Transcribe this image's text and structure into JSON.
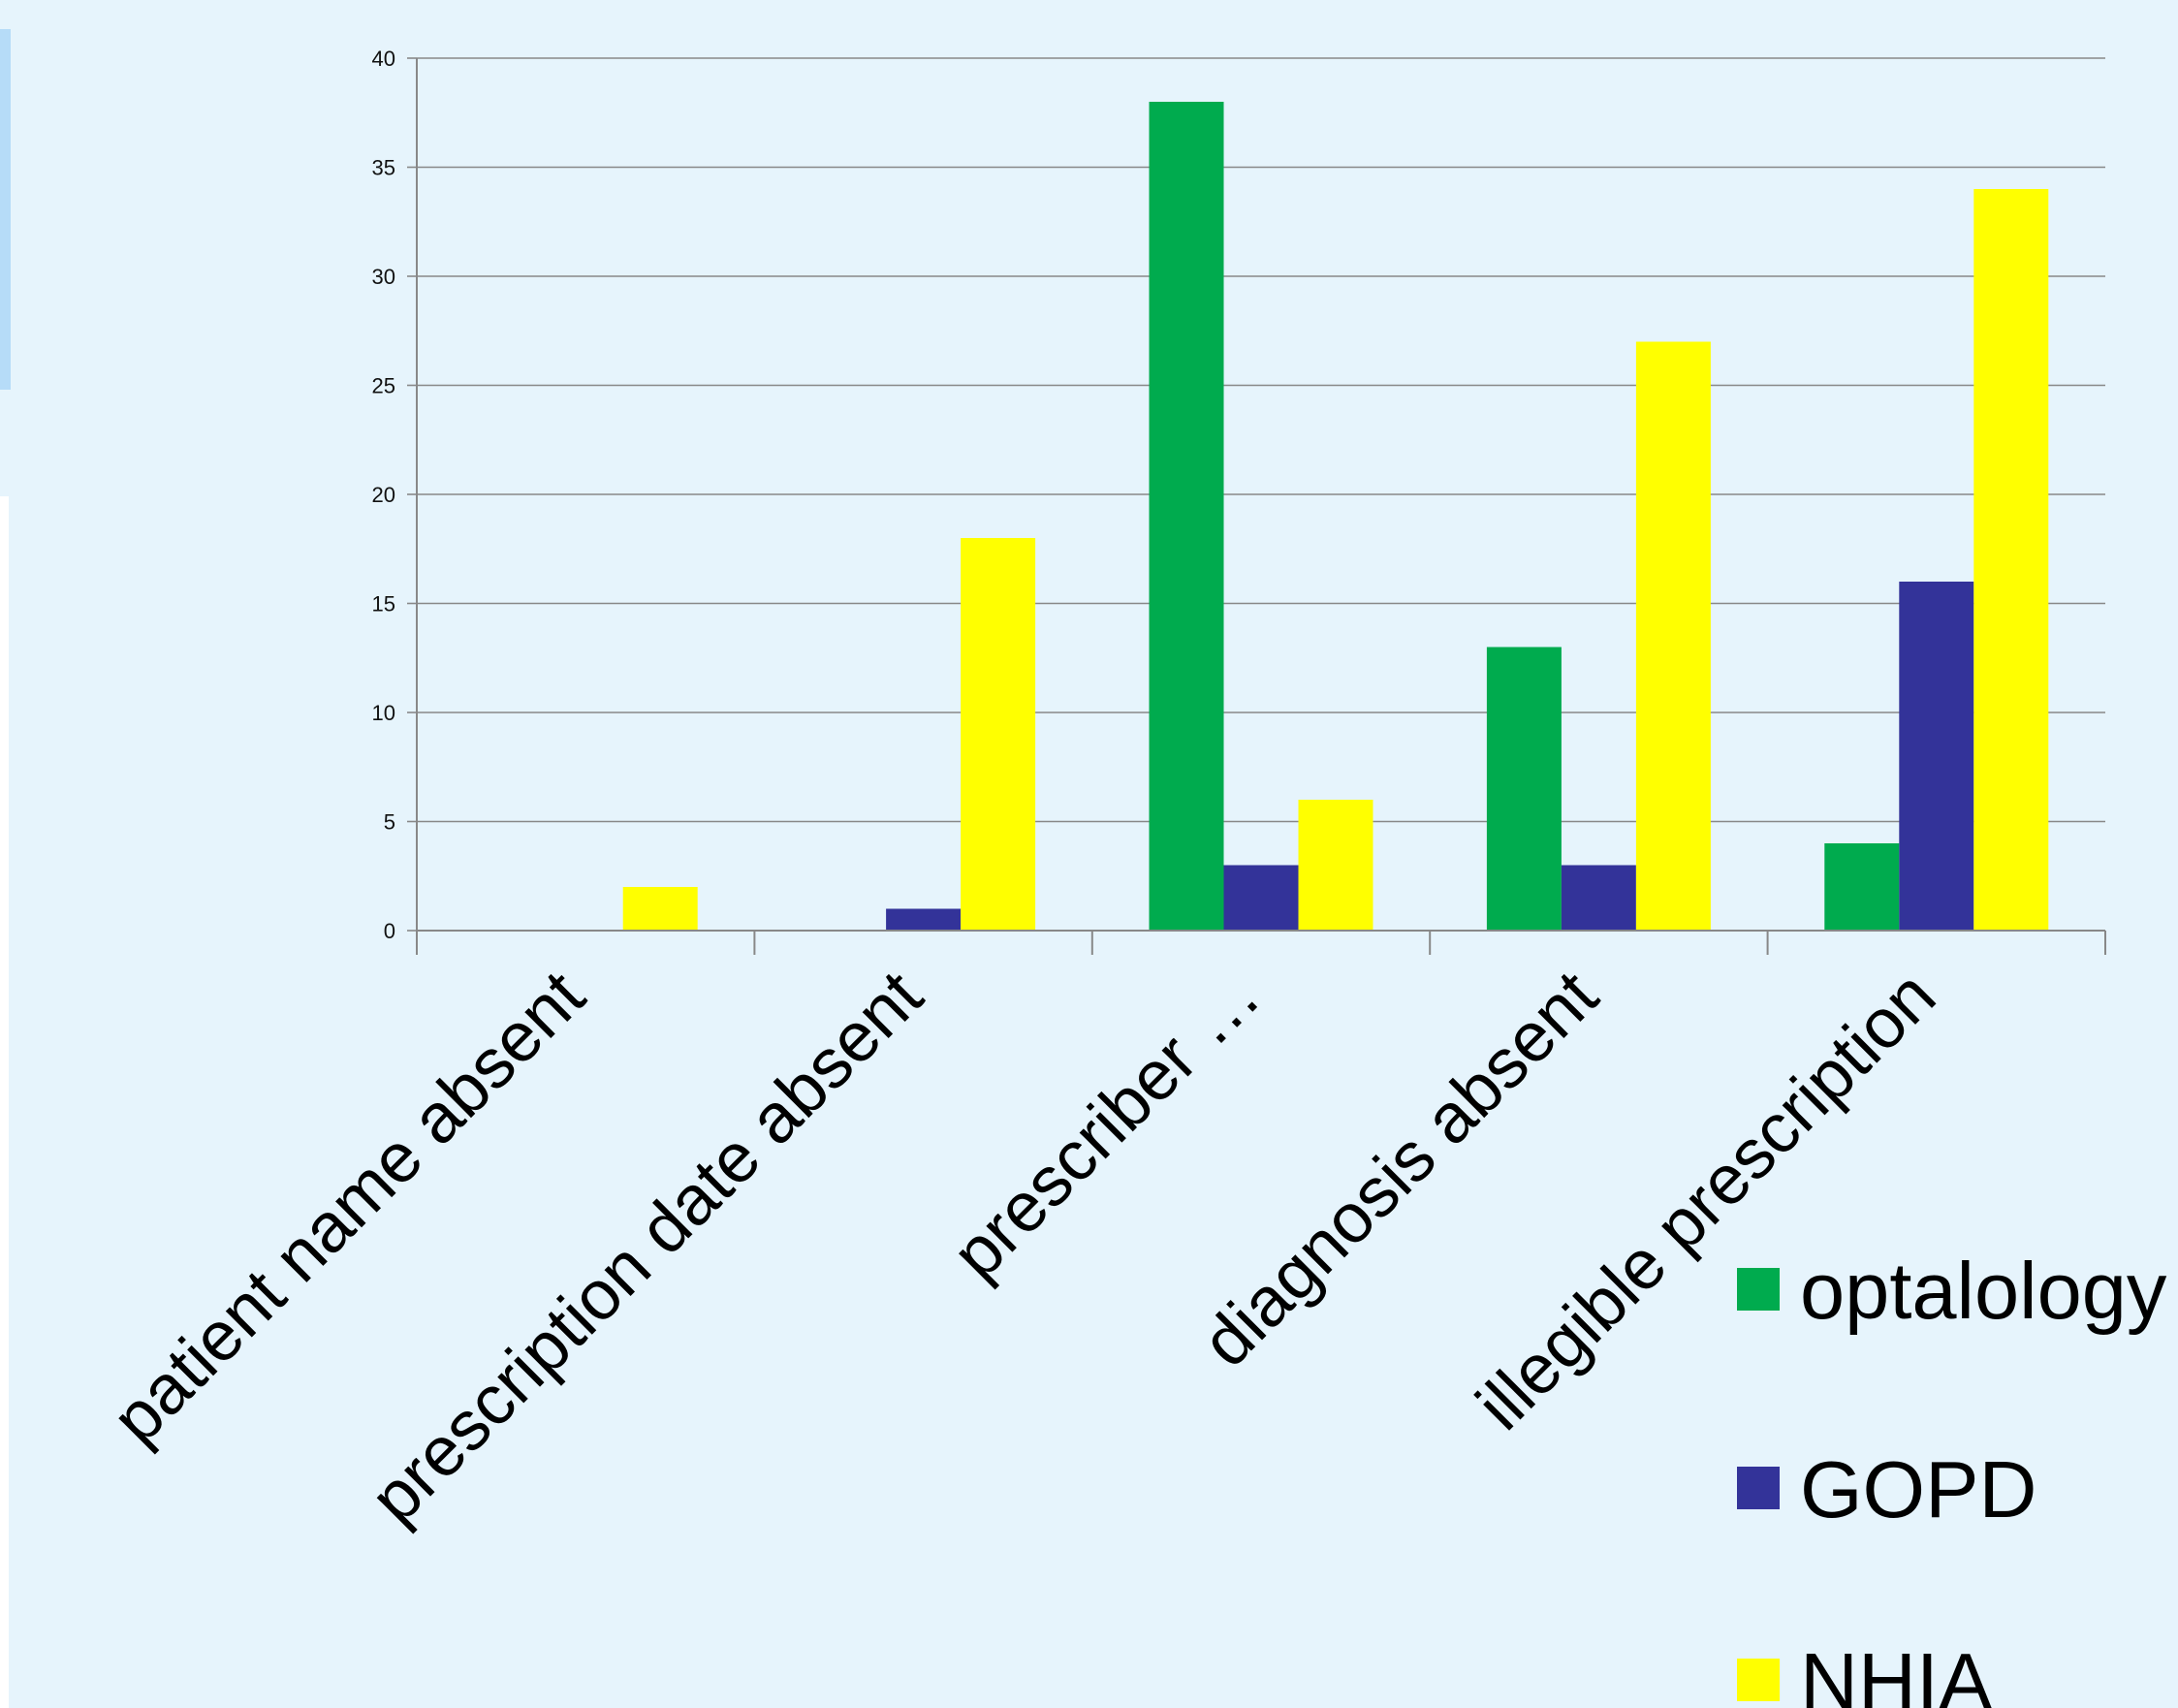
{
  "chart_data": {
    "type": "bar",
    "categories": [
      "patient name absent",
      "prescription date absent",
      "prescriber …",
      "diagnosis absent",
      "illegible prescription"
    ],
    "series": [
      {
        "name": "optalology",
        "color": "#00ab4e",
        "values": [
          0,
          0,
          38,
          13,
          4
        ]
      },
      {
        "name": "GOPD",
        "color": "#333399",
        "values": [
          0,
          1,
          3,
          3,
          16
        ]
      },
      {
        "name": "NHIA",
        "color": "#ffff00",
        "values": [
          2,
          18,
          6,
          27,
          34
        ]
      }
    ],
    "ylim": [
      0,
      40
    ],
    "yticks": [
      0,
      5,
      10,
      15,
      20,
      25,
      30,
      35,
      40
    ],
    "grid": true,
    "legend_position": "bottom-right"
  }
}
